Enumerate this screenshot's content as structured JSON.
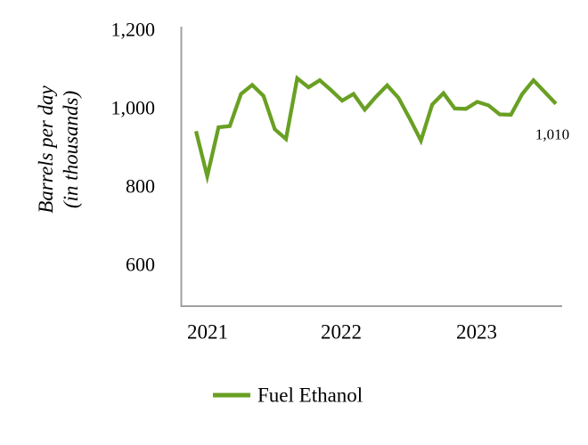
{
  "chart_data": {
    "type": "line",
    "title": "",
    "xlabel": "",
    "ylabel": "Barrels per day (in thousands)",
    "ylabel_lines": [
      "Barrels per day",
      "(in thousands)"
    ],
    "x": [
      "2020-12",
      "2021-01",
      "2021-02",
      "2021-03",
      "2021-04",
      "2021-05",
      "2021-06",
      "2021-07",
      "2021-08",
      "2021-09",
      "2021-10",
      "2021-11",
      "2021-12",
      "2022-01",
      "2022-02",
      "2022-03",
      "2022-04",
      "2022-05",
      "2022-06",
      "2022-07",
      "2022-08",
      "2022-09",
      "2022-10",
      "2022-11",
      "2022-12",
      "2023-01",
      "2023-02",
      "2023-03",
      "2023-04",
      "2023-05",
      "2023-06",
      "2023-07",
      "2023-08"
    ],
    "series": [
      {
        "name": "Fuel Ethanol",
        "color": "#69A023",
        "values": [
          940,
          825,
          950,
          953,
          1035,
          1058,
          1030,
          945,
          920,
          1075,
          1052,
          1070,
          1045,
          1018,
          1035,
          995,
          1028,
          1057,
          1025,
          972,
          916,
          1008,
          1037,
          998,
          997,
          1015,
          1006,
          983,
          982,
          1035,
          1070,
          1040,
          1010
        ]
      }
    ],
    "x_tick_labels": [
      "2021",
      "2022",
      "2023"
    ],
    "y_tick_labels": [
      "1,200",
      "1,000",
      "800",
      "600"
    ],
    "y_ticks": [
      1200,
      1000,
      800,
      600
    ],
    "ylim": [
      500,
      1200
    ],
    "grid": false,
    "legend_position": "bottom",
    "last_value_label": "1,010"
  },
  "legend": {
    "label": "Fuel Ethanol"
  },
  "colors": {
    "series_green": "#69A023",
    "axis_gray": "#A0A0A0",
    "text_black": "#000000"
  }
}
